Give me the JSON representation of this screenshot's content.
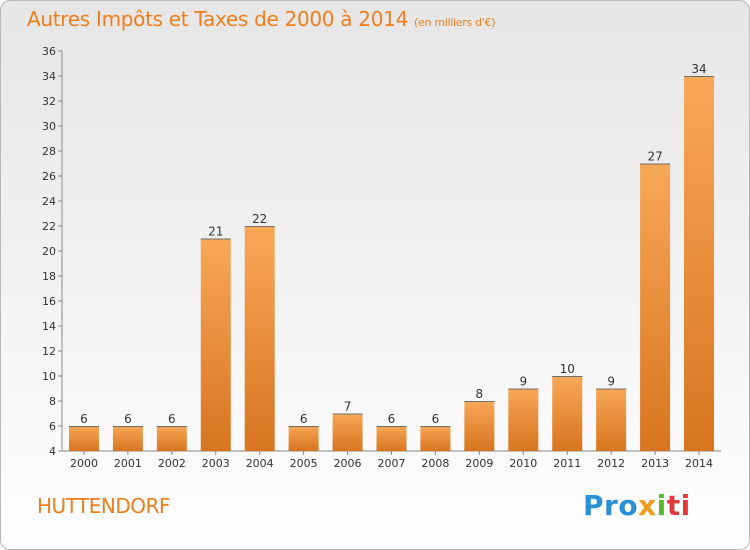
{
  "header": {
    "title": "Autres Impôts et Taxes de 2000 à 2014",
    "subtitle": "(en milliers d'€)"
  },
  "footer": {
    "town": "HUTTENDORF",
    "logo": [
      "Pro",
      "x",
      "i",
      "ti"
    ]
  },
  "colors": {
    "bar_light": "#f7a857",
    "bar_dark": "#d8741f",
    "title": "#f07d1a",
    "axis": "#888888"
  },
  "chart_data": {
    "type": "bar",
    "title": "Autres Impôts et Taxes de 2000 à 2014",
    "subtitle": "(en milliers d'€)",
    "categories": [
      "2000",
      "2001",
      "2002",
      "2003",
      "2004",
      "2005",
      "2006",
      "2007",
      "2008",
      "2009",
      "2010",
      "2011",
      "2012",
      "2013",
      "2014"
    ],
    "values": [
      6,
      6,
      6,
      21,
      22,
      6,
      7,
      6,
      6,
      8,
      9,
      10,
      9,
      27,
      34
    ],
    "ylim": [
      4,
      36
    ],
    "yticks": [
      4,
      6,
      8,
      10,
      12,
      14,
      16,
      18,
      20,
      22,
      24,
      26,
      28,
      30,
      32,
      34,
      36
    ],
    "grid": false,
    "xlabel": "",
    "ylabel": ""
  }
}
